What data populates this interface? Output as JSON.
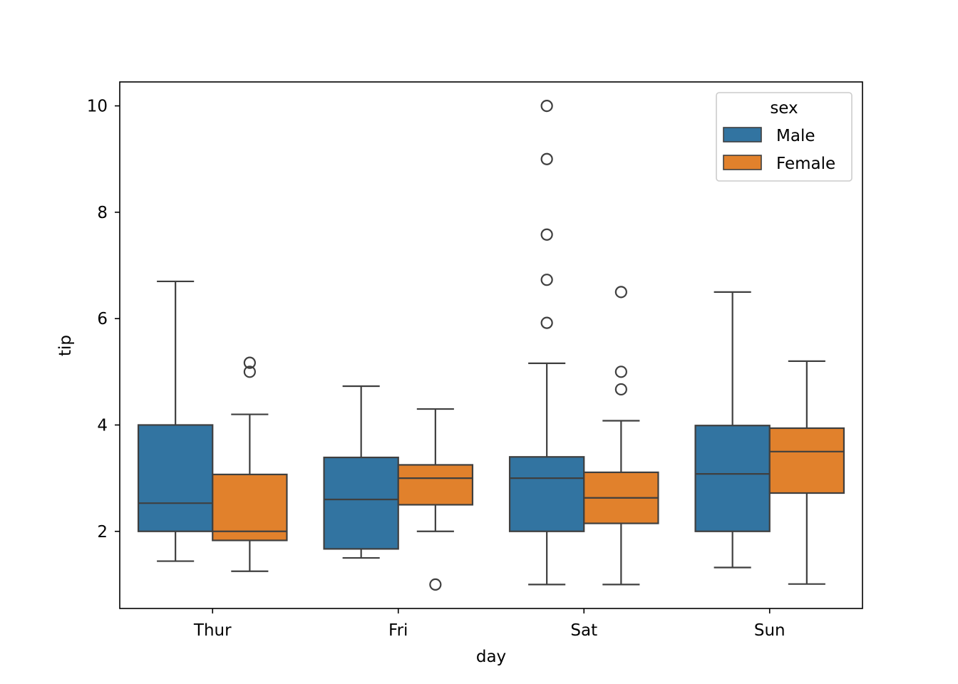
{
  "chart_data": {
    "type": "box",
    "title": "",
    "xlabel": "day",
    "ylabel": "tip",
    "categories": [
      "Thur",
      "Fri",
      "Sat",
      "Sun"
    ],
    "ylim": [
      0.55,
      10.45
    ],
    "yticks": [
      2,
      4,
      6,
      8,
      10
    ],
    "grid": false,
    "legend": {
      "title": "sex",
      "position": "top-right"
    },
    "series": [
      {
        "name": "Male",
        "color": "#3274a1",
        "boxes": [
          {
            "category": "Thur",
            "whisker_low": 1.44,
            "q1": 2.0,
            "median": 2.53,
            "q3": 4.0,
            "whisker_high": 6.7,
            "outliers": []
          },
          {
            "category": "Fri",
            "whisker_low": 1.5,
            "q1": 1.67,
            "median": 2.6,
            "q3": 3.39,
            "whisker_high": 4.73,
            "outliers": []
          },
          {
            "category": "Sat",
            "whisker_low": 1.0,
            "q1": 2.0,
            "median": 3.0,
            "q3": 3.4,
            "whisker_high": 5.16,
            "outliers": [
              5.92,
              6.73,
              7.58,
              9.0,
              10.0
            ]
          },
          {
            "category": "Sun",
            "whisker_low": 1.32,
            "q1": 2.0,
            "median": 3.08,
            "q3": 3.99,
            "whisker_high": 6.5,
            "outliers": []
          }
        ]
      },
      {
        "name": "Female",
        "color": "#e1812c",
        "boxes": [
          {
            "category": "Thur",
            "whisker_low": 1.25,
            "q1": 1.83,
            "median": 2.0,
            "q3": 3.07,
            "whisker_high": 4.2,
            "outliers": [
              5.0,
              5.17
            ]
          },
          {
            "category": "Fri",
            "whisker_low": 2.0,
            "q1": 2.5,
            "median": 3.0,
            "q3": 3.25,
            "whisker_high": 4.3,
            "outliers": [
              1.0
            ]
          },
          {
            "category": "Sat",
            "whisker_low": 1.0,
            "q1": 2.15,
            "median": 2.63,
            "q3": 3.11,
            "whisker_high": 4.08,
            "outliers": [
              4.67,
              5.0,
              6.5
            ]
          },
          {
            "category": "Sun",
            "whisker_low": 1.01,
            "q1": 2.72,
            "median": 3.5,
            "q3": 3.94,
            "whisker_high": 5.2,
            "outliers": []
          }
        ]
      }
    ]
  }
}
